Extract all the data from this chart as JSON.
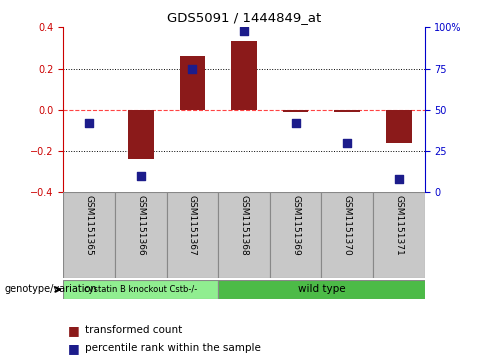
{
  "title": "GDS5091 / 1444849_at",
  "samples": [
    "GSM1151365",
    "GSM1151366",
    "GSM1151367",
    "GSM1151368",
    "GSM1151369",
    "GSM1151370",
    "GSM1151371"
  ],
  "transformed_counts": [
    0.0,
    -0.24,
    0.26,
    0.335,
    -0.01,
    -0.01,
    -0.16
  ],
  "percentile_ranks": [
    42,
    10,
    75,
    98,
    42,
    30,
    8
  ],
  "group_split": 3,
  "ylim_left": [
    -0.4,
    0.4
  ],
  "ylim_right": [
    0,
    100
  ],
  "yticks_left": [
    -0.4,
    -0.2,
    0.0,
    0.2,
    0.4
  ],
  "yticks_right": [
    0,
    25,
    50,
    75,
    100
  ],
  "bar_color": "#8B1A1A",
  "dot_color": "#1C1C8B",
  "hline_color": "#FF4444",
  "grid_color": "#000000",
  "bg_color": "#FFFFFF",
  "label_tc": "transformed count",
  "label_pr": "percentile rank within the sample",
  "label_gv": "genotype/variation",
  "group1_label": "cystatin B knockout Cstb-/-",
  "group2_label": "wild type",
  "group1_color": "#90EE90",
  "group2_color": "#4CBB47",
  "bar_width": 0.5
}
